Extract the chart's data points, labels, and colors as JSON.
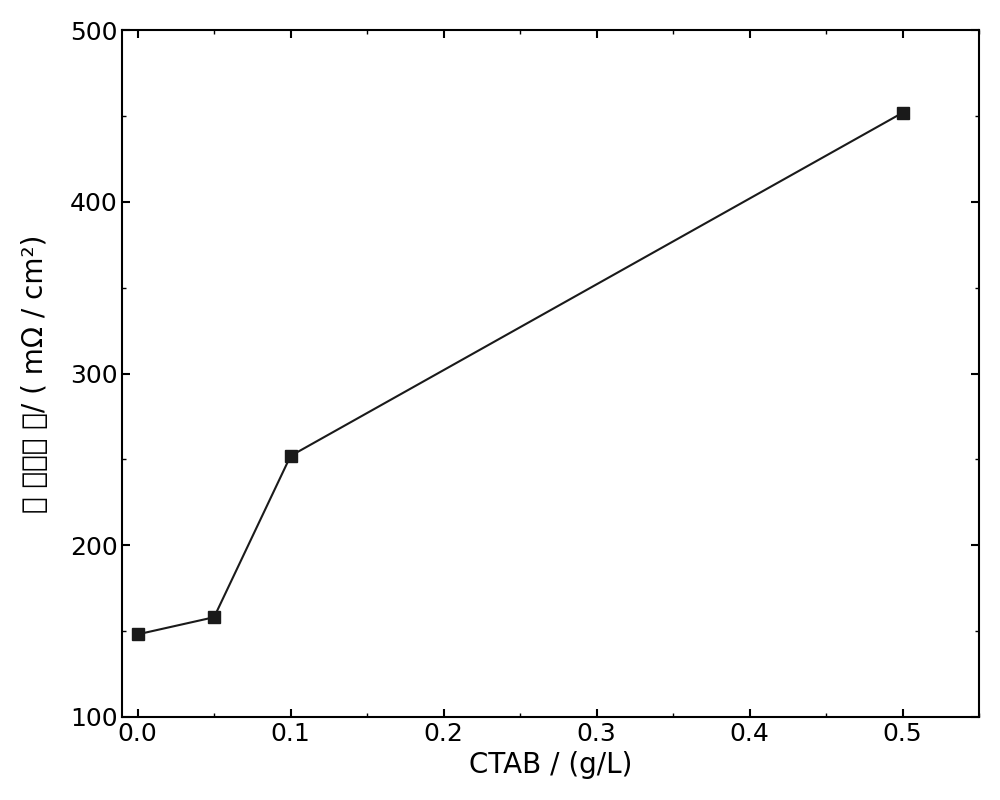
{
  "x": [
    0.0,
    0.05,
    0.1,
    0.5
  ],
  "y": [
    148,
    158,
    252,
    452
  ],
  "xlabel": "CTAB / (g/L)",
  "ylabel_chinese": "表 面电阳 率/",
  "ylabel_units": "( mΩ / cm²)",
  "xlim": [
    -0.01,
    0.55
  ],
  "ylim": [
    100,
    500
  ],
  "xticks": [
    0.0,
    0.1,
    0.2,
    0.3,
    0.4,
    0.5
  ],
  "yticks": [
    100,
    200,
    300,
    400,
    500
  ],
  "line_color": "#1a1a1a",
  "marker": "s",
  "marker_size": 9,
  "linewidth": 1.5,
  "xlabel_fontsize": 20,
  "ylabel_fontsize": 20,
  "tick_fontsize": 18,
  "background_color": "#ffffff"
}
